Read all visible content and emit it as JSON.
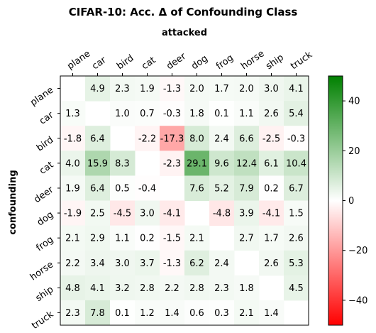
{
  "chart_data": {
    "type": "heatmap",
    "title": "CIFAR-10: Acc. Δ of Confounding Class",
    "xlabel": "attacked",
    "ylabel": "confounding",
    "columns": [
      "plane",
      "car",
      "bird",
      "cat",
      "deer",
      "dog",
      "frog",
      "horse",
      "ship",
      "truck"
    ],
    "rows": [
      "plane",
      "car",
      "bird",
      "cat",
      "deer",
      "dog",
      "frog",
      "horse",
      "ship",
      "truck"
    ],
    "values": [
      [
        null,
        4.9,
        2.3,
        1.9,
        -1.3,
        2.0,
        1.7,
        2.0,
        3.0,
        4.1
      ],
      [
        1.3,
        null,
        1.0,
        0.7,
        -0.3,
        1.8,
        0.1,
        1.1,
        2.6,
        5.4
      ],
      [
        -1.8,
        6.4,
        null,
        -2.2,
        -17.3,
        8.0,
        2.4,
        6.6,
        -2.5,
        -0.3
      ],
      [
        4.0,
        15.9,
        8.3,
        null,
        -2.3,
        29.1,
        9.6,
        12.4,
        6.1,
        10.4
      ],
      [
        1.9,
        6.4,
        0.5,
        -0.4,
        null,
        7.6,
        5.2,
        7.9,
        0.2,
        6.7
      ],
      [
        -1.9,
        2.5,
        -4.5,
        3.0,
        -4.1,
        null,
        -4.8,
        3.9,
        -4.1,
        1.5
      ],
      [
        2.1,
        2.9,
        1.1,
        0.2,
        -1.5,
        2.1,
        null,
        2.7,
        1.7,
        2.6
      ],
      [
        2.2,
        3.4,
        3.0,
        3.7,
        -1.3,
        6.2,
        2.4,
        null,
        2.6,
        5.3
      ],
      [
        4.8,
        4.1,
        3.2,
        2.8,
        2.2,
        2.8,
        2.3,
        1.8,
        null,
        4.5
      ],
      [
        2.3,
        7.8,
        0.1,
        1.2,
        1.4,
        0.6,
        0.3,
        2.1,
        1.4,
        null
      ]
    ],
    "colorbar": {
      "range": [
        -50,
        50
      ],
      "ticks": [
        40,
        20,
        0,
        -20,
        -40
      ],
      "colors": {
        "negative": "#ff0000",
        "neutral": "#ffffff",
        "positive": "#008000"
      }
    }
  }
}
